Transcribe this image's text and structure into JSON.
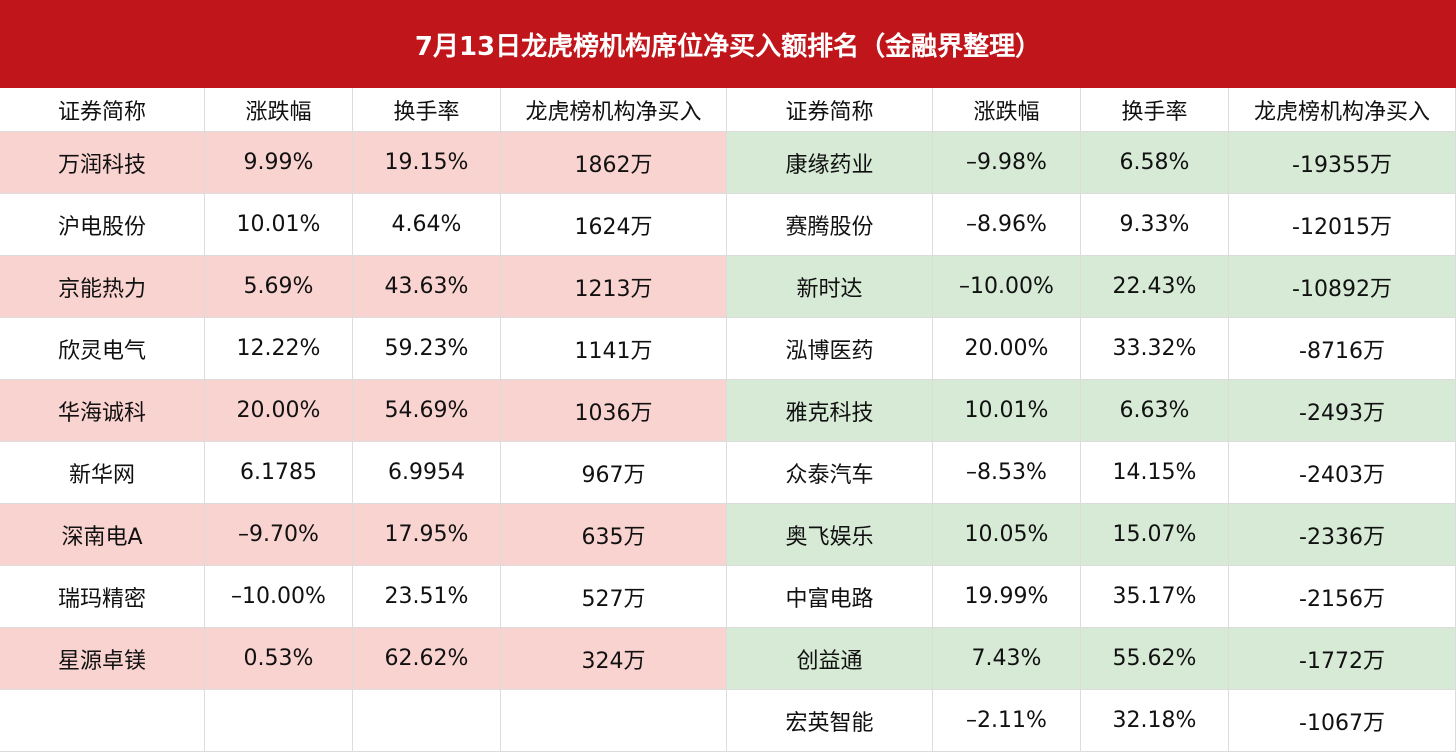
{
  "header": {
    "title": "7月13日龙虎榜机构席位净买入额排名（金融界整理）"
  },
  "table": {
    "columns": [
      "证券简称",
      "涨跌幅",
      "换手率",
      "龙虎榜机构净买入",
      "证券简称",
      "涨跌幅",
      "换手率",
      "龙虎榜机构净买入"
    ],
    "left_rows": [
      [
        "万润科技",
        "9.99%",
        "19.15%",
        "1862万"
      ],
      [
        "沪电股份",
        "10.01%",
        "4.64%",
        "1624万"
      ],
      [
        "京能热力",
        "5.69%",
        "43.63%",
        "1213万"
      ],
      [
        "欣灵电气",
        "12.22%",
        "59.23%",
        "1141万"
      ],
      [
        "华海诚科",
        "20.00%",
        "54.69%",
        "1036万"
      ],
      [
        "新华网",
        "6.1785",
        "6.9954",
        "967万"
      ],
      [
        "深南电A",
        "–9.70%",
        "17.95%",
        "635万"
      ],
      [
        "瑞玛精密",
        "–10.00%",
        "23.51%",
        "527万"
      ],
      [
        "星源卓镁",
        "0.53%",
        "62.62%",
        "324万"
      ]
    ],
    "right_rows": [
      [
        "康缘药业",
        "–9.98%",
        "6.58%",
        "-19355万"
      ],
      [
        "赛腾股份",
        "–8.96%",
        "9.33%",
        "-12015万"
      ],
      [
        "新时达",
        "–10.00%",
        "22.43%",
        "-10892万"
      ],
      [
        "泓博医药",
        "20.00%",
        "33.32%",
        "-8716万"
      ],
      [
        "雅克科技",
        "10.01%",
        "6.63%",
        "-2493万"
      ],
      [
        "众泰汽车",
        "–8.53%",
        "14.15%",
        "-2403万"
      ],
      [
        "奥飞娱乐",
        "10.05%",
        "15.07%",
        "-2336万"
      ],
      [
        "中富电路",
        "19.99%",
        "35.17%",
        "-2156万"
      ],
      [
        "创益通",
        "7.43%",
        "55.62%",
        "-1772万"
      ],
      [
        "宏英智能",
        "–2.11%",
        "32.18%",
        "-1067万"
      ]
    ]
  }
}
